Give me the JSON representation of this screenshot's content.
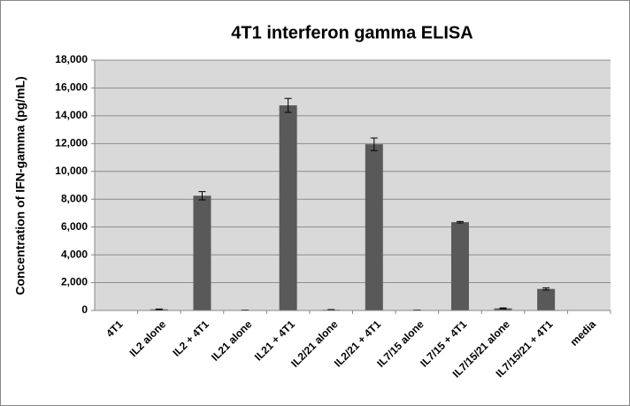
{
  "chart_data": {
    "type": "bar",
    "title": "4T1 interferon gamma ELISA",
    "y_label": "Concentration of IFN-gamma (pg/mL)",
    "categories": [
      "4T1",
      "IL2 alone",
      "IL2 + 4T1",
      "IL21 alone",
      "IL21 + 4T1",
      "IL2/21 alone",
      "IL2/21 + 4T1",
      "IL7/15 alone",
      "IL7/15 + 4T1",
      "IL7/15/21 alone",
      "IL7/15/21 + 4T1",
      "media"
    ],
    "values": [
      0,
      80,
      8250,
      20,
      14750,
      50,
      11950,
      20,
      6350,
      150,
      1550,
      0
    ],
    "errors": [
      0,
      20,
      300,
      10,
      500,
      15,
      450,
      10,
      50,
      30,
      80,
      0
    ],
    "color": "#595959",
    "ylim": [
      0,
      18000
    ],
    "yticks": [
      0,
      {
        "value": 2000,
        "label": "2,000"
      },
      {
        "value": 4000,
        "label": "4,000"
      },
      {
        "value": 6000,
        "label": "6,000"
      },
      {
        "value": 8000,
        "label": "8,000"
      },
      {
        "value": 10000,
        "label": "10,000"
      },
      {
        "value": 12000,
        "label": "12,000"
      },
      {
        "value": 14000,
        "label": "14,000"
      },
      {
        "value": 16000,
        "label": "16,000"
      },
      {
        "value": 18000,
        "label": "18,000"
      }
    ],
    "grid": true
  }
}
